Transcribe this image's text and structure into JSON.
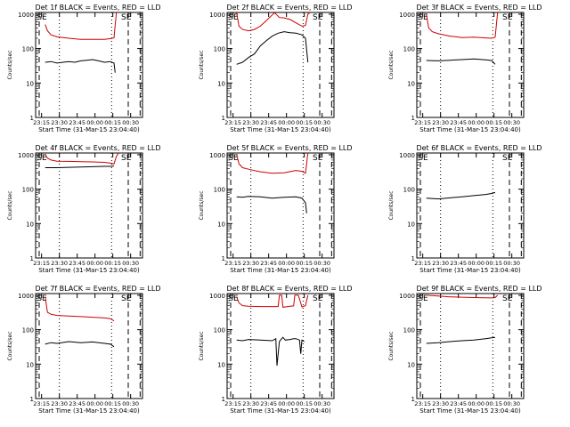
{
  "chart_data": [
    {
      "type": "line",
      "title": "Det 1f BLACK = Events, RED = LLD",
      "xlabel": "Start Time (31-Mar-15 23:04:40)",
      "ylabel": "Counts/sec",
      "xticks": [
        "23:15",
        "23:30",
        "23:45",
        "00:00",
        "00:15",
        "00:30"
      ],
      "yticks": [
        "1",
        "10",
        "100",
        "1000"
      ],
      "ylim": [
        1,
        1000
      ],
      "yscale": "log",
      "markers": {
        "left": "SE",
        "right": "SE"
      },
      "series": [
        {
          "color": "#cc0000",
          "x": [
            0,
            2,
            5,
            10,
            20,
            30,
            40,
            50,
            55,
            58,
            60
          ],
          "y": [
            500,
            330,
            250,
            220,
            200,
            185,
            185,
            185,
            195,
            205,
            2000
          ]
        },
        {
          "color": "#000000",
          "x": [
            0,
            5,
            10,
            15,
            20,
            25,
            30,
            35,
            40,
            45,
            50,
            55,
            58,
            59
          ],
          "y": [
            40,
            42,
            38,
            40,
            42,
            40,
            44,
            46,
            48,
            44,
            40,
            42,
            38,
            20
          ]
        }
      ]
    },
    {
      "type": "line",
      "title": "Det 2f BLACK = Events, RED = LLD",
      "xlabel": "Start Time (31-Mar-15 23:04:40)",
      "ylabel": "Counts/sec",
      "xticks": [
        "23:15",
        "23:30",
        "23:45",
        "00:00",
        "00:15",
        "00:30"
      ],
      "yticks": [
        "1",
        "10",
        "100",
        "1000"
      ],
      "ylim": [
        1,
        1000
      ],
      "yscale": "log",
      "markers": {
        "left": "SE",
        "right": "SE"
      },
      "series": [
        {
          "color": "#cc0000",
          "x": [
            0,
            2,
            5,
            10,
            15,
            20,
            25,
            28,
            32,
            36,
            40,
            45,
            50,
            55,
            58,
            60,
            62
          ],
          "y": [
            1200,
            450,
            360,
            330,
            360,
            450,
            650,
            820,
            1100,
            800,
            780,
            700,
            560,
            450,
            470,
            1000,
            2500
          ]
        },
        {
          "color": "#000000",
          "x": [
            0,
            5,
            10,
            15,
            20,
            25,
            30,
            35,
            40,
            45,
            50,
            55,
            58,
            60
          ],
          "y": [
            35,
            40,
            55,
            70,
            120,
            170,
            230,
            280,
            310,
            290,
            280,
            250,
            200,
            40
          ]
        }
      ]
    },
    {
      "type": "line",
      "title": "Det 3f BLACK = Events, RED = LLD",
      "xlabel": "Start Time (31-Mar-15 23:04:40)",
      "ylabel": "Counts/sec",
      "xticks": [
        "23:15",
        "23:30",
        "23:45",
        "00:00",
        "00:15",
        "00:30"
      ],
      "yticks": [
        "1",
        "10",
        "100",
        "1000"
      ],
      "ylim": [
        1,
        1000
      ],
      "yscale": "log",
      "markers": {
        "left": "SE",
        "right": "SE"
      },
      "series": [
        {
          "color": "#cc0000",
          "x": [
            0,
            2,
            5,
            10,
            20,
            30,
            40,
            50,
            55,
            58,
            60
          ],
          "y": [
            1000,
            400,
            310,
            270,
            230,
            210,
            215,
            205,
            200,
            215,
            1500
          ]
        },
        {
          "color": "#000000",
          "x": [
            0,
            10,
            20,
            30,
            40,
            50,
            55,
            58
          ],
          "y": [
            45,
            44,
            46,
            48,
            50,
            47,
            45,
            35
          ]
        }
      ]
    },
    {
      "type": "line",
      "title": "Det 4f BLACK = Events, RED = LLD",
      "xlabel": "Start Time (31-Mar-15 23:04:40)",
      "ylabel": "Counts/sec",
      "xticks": [
        "23:15",
        "23:30",
        "23:45",
        "00:00",
        "00:15",
        "00:30"
      ],
      "yticks": [
        "1",
        "10",
        "100",
        "1000"
      ],
      "ylim": [
        1,
        1000
      ],
      "yscale": "log",
      "markers": {
        "left": "SE",
        "right": "SE"
      },
      "series": [
        {
          "color": "#cc0000",
          "x": [
            0,
            2,
            5,
            10,
            20,
            30,
            40,
            50,
            55,
            58,
            60,
            62
          ],
          "y": [
            1000,
            800,
            700,
            650,
            640,
            630,
            620,
            600,
            570,
            540,
            900,
            2000
          ]
        },
        {
          "color": "#000000",
          "x": [
            0,
            10,
            20,
            30,
            40,
            50,
            55,
            58
          ],
          "y": [
            420,
            420,
            430,
            440,
            450,
            460,
            460,
            470
          ]
        }
      ]
    },
    {
      "type": "line",
      "title": "Det 5f BLACK = Events, RED = LLD",
      "xlabel": "Start Time (31-Mar-15 23:04:40)",
      "ylabel": "Counts/sec",
      "xticks": [
        "23:15",
        "23:30",
        "23:45",
        "00:00",
        "00:15",
        "00:30"
      ],
      "yticks": [
        "1",
        "10",
        "100",
        "1000"
      ],
      "ylim": [
        1,
        1000
      ],
      "yscale": "log",
      "markers": {
        "left": "SE",
        "right": "SE"
      },
      "series": [
        {
          "color": "#cc0000",
          "x": [
            0,
            2,
            5,
            10,
            20,
            30,
            40,
            50,
            55,
            58,
            60
          ],
          "y": [
            1000,
            550,
            420,
            380,
            320,
            290,
            300,
            350,
            330,
            290,
            1800
          ]
        },
        {
          "color": "#000000",
          "x": [
            0,
            5,
            10,
            20,
            30,
            40,
            50,
            55,
            58,
            59
          ],
          "y": [
            60,
            58,
            62,
            60,
            55,
            58,
            60,
            55,
            40,
            20
          ]
        }
      ]
    },
    {
      "type": "line",
      "title": "Det 6f BLACK = Events, RED = LLD",
      "xlabel": "Start Time (31-Mar-15 23:04:40)",
      "ylabel": "Counts/sec",
      "xticks": [
        "23:15",
        "23:30",
        "23:45",
        "00:00",
        "00:15",
        "00:30"
      ],
      "yticks": [
        "1",
        "10",
        "100",
        "1000"
      ],
      "ylim": [
        1,
        1000
      ],
      "yscale": "log",
      "markers": {
        "left": "SE",
        "right": "SE"
      },
      "series": [
        {
          "color": "#000000",
          "x": [
            0,
            10,
            20,
            30,
            40,
            50,
            55,
            58
          ],
          "y": [
            55,
            52,
            56,
            60,
            65,
            70,
            75,
            80
          ]
        }
      ]
    },
    {
      "type": "line",
      "title": "Det 7f BLACK = Events, RED = LLD",
      "xlabel": "Start Time (31-Mar-15 23:04:40)",
      "ylabel": "Counts/sec",
      "xticks": [
        "23:15",
        "23:30",
        "23:45",
        "00:00",
        "00:15",
        "00:30"
      ],
      "yticks": [
        "1",
        "10",
        "100",
        "1000"
      ],
      "ylim": [
        1,
        1000
      ],
      "yscale": "log",
      "markers": {
        "left": "SE",
        "right": "SE"
      },
      "series": [
        {
          "color": "#cc0000",
          "x": [
            0,
            2,
            5,
            10,
            20,
            30,
            40,
            50,
            55,
            58
          ],
          "y": [
            900,
            320,
            280,
            260,
            250,
            240,
            230,
            220,
            210,
            180
          ]
        },
        {
          "color": "#000000",
          "x": [
            0,
            5,
            10,
            20,
            30,
            40,
            50,
            55,
            58
          ],
          "y": [
            38,
            42,
            40,
            45,
            42,
            44,
            40,
            38,
            32
          ]
        }
      ]
    },
    {
      "type": "line",
      "title": "Det 8f BLACK = Events, RED = LLD",
      "xlabel": "Start Time (31-Mar-15 23:04:40)",
      "ylabel": "Counts/sec",
      "xticks": [
        "23:15",
        "23:30",
        "23:45",
        "00:00",
        "00:15",
        "00:30"
      ],
      "yticks": [
        "1",
        "10",
        "100",
        "1000"
      ],
      "ylim": [
        1,
        1000
      ],
      "yscale": "log",
      "markers": {
        "left": "SE",
        "right": "SE"
      },
      "series": [
        {
          "color": "#cc0000",
          "x": [
            0,
            2,
            5,
            10,
            20,
            30,
            35,
            36,
            38,
            39,
            45,
            48,
            49,
            52,
            55,
            58,
            60
          ],
          "y": [
            900,
            600,
            500,
            480,
            470,
            470,
            470,
            1000,
            1000,
            450,
            480,
            490,
            1000,
            1000,
            460,
            500,
            1000
          ]
        },
        {
          "color": "#000000",
          "x": [
            0,
            5,
            10,
            20,
            30,
            33,
            34,
            36,
            38,
            39,
            41,
            45,
            48,
            50,
            53,
            54,
            55,
            57
          ],
          "y": [
            50,
            48,
            52,
            50,
            48,
            55,
            9,
            45,
            55,
            60,
            50,
            52,
            55,
            55,
            50,
            20,
            50,
            45
          ]
        }
      ]
    },
    {
      "type": "line",
      "title": "Det 9f BLACK = Events, RED = LLD",
      "xlabel": "Start Time (31-Mar-15 23:04:40)",
      "ylabel": "Counts/sec",
      "xticks": [
        "23:15",
        "23:30",
        "23:45",
        "00:00",
        "00:15",
        "00:30"
      ],
      "yticks": [
        "1",
        "10",
        "100",
        "1000"
      ],
      "ylim": [
        1,
        1000
      ],
      "yscale": "log",
      "markers": {
        "left": "SE",
        "right": "SE"
      },
      "series": [
        {
          "color": "#cc0000",
          "x": [
            0,
            10,
            20,
            30,
            40,
            50,
            55,
            58,
            60
          ],
          "y": [
            1000,
            950,
            900,
            880,
            860,
            850,
            840,
            860,
            1000
          ]
        },
        {
          "color": "#000000",
          "x": [
            0,
            10,
            20,
            30,
            40,
            50,
            55,
            58
          ],
          "y": [
            40,
            42,
            45,
            48,
            50,
            55,
            58,
            60
          ]
        }
      ]
    }
  ]
}
